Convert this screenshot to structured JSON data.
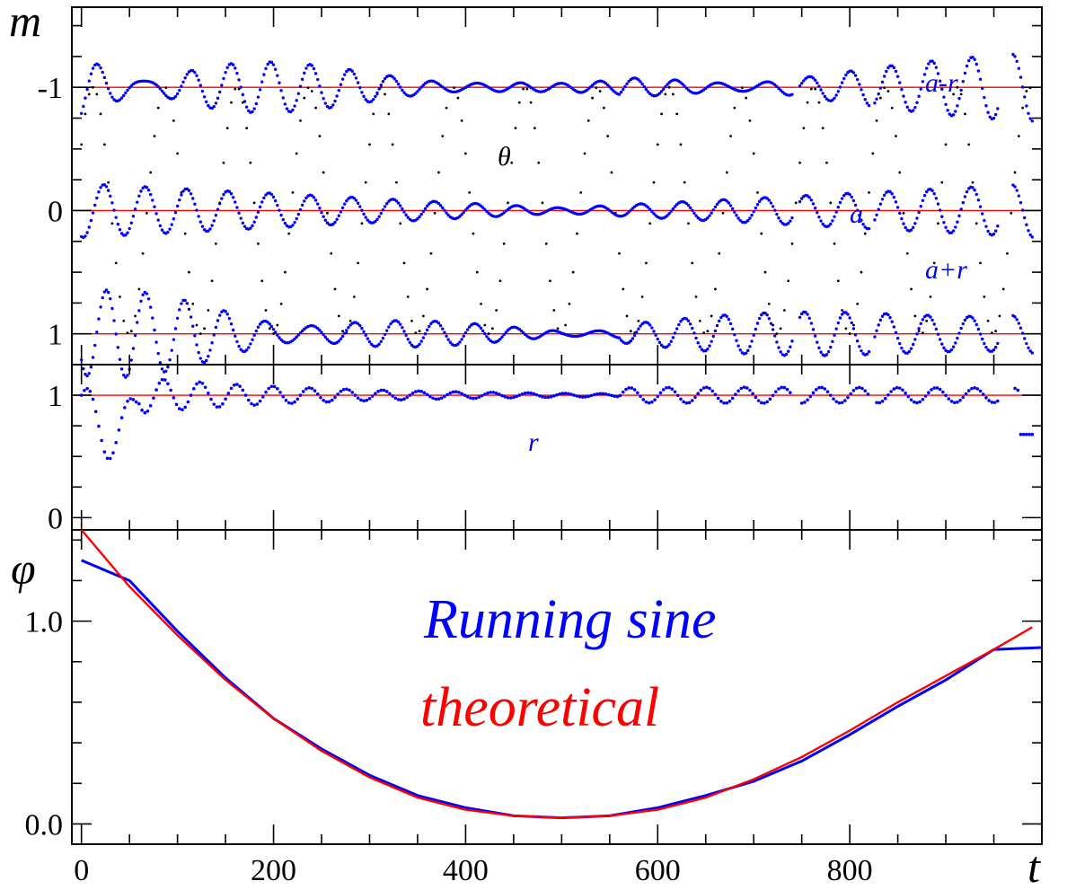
{
  "colors": {
    "data": "#0000ff",
    "theory": "#ff0000",
    "theta": "#000000",
    "axis": "#000000"
  },
  "chart_data": [
    {
      "panel": "top",
      "type": "scatter",
      "ylabel": "m",
      "ylim": [
        1.25,
        -1.65
      ],
      "y_inverted": true,
      "yticks": [
        -1,
        0,
        1
      ],
      "ytick_labels": [
        "-1",
        "0",
        "1"
      ],
      "xlim": [
        -10,
        1000
      ],
      "reference_lines": [
        -1,
        0,
        1
      ],
      "theta_range": [
        -1,
        1
      ],
      "theta_period": 75,
      "annotations": [
        "a-r",
        "θ",
        "a",
        "a+r"
      ],
      "series": [
        {
          "name": "a-r",
          "color": "#0000ff"
        },
        {
          "name": "a",
          "color": "#0000ff"
        },
        {
          "name": "a+r",
          "color": "#0000ff"
        },
        {
          "name": "θ",
          "color": "#000000"
        }
      ]
    },
    {
      "panel": "middle",
      "type": "scatter",
      "ylim": [
        -0.1,
        1.25
      ],
      "yticks": [
        0,
        1
      ],
      "ytick_labels": [
        "0",
        "1"
      ],
      "xlim": [
        -10,
        1000
      ],
      "reference_lines": [
        1
      ],
      "annotations": [
        "r"
      ],
      "series": [
        {
          "name": "r",
          "color": "#0000ff"
        }
      ]
    },
    {
      "panel": "bottom",
      "type": "line",
      "ylabel": "φ",
      "xlabel": "t",
      "ylim": [
        -0.1,
        1.45
      ],
      "yticks": [
        0.0,
        1.0
      ],
      "ytick_labels": [
        "0.0",
        "1.0"
      ],
      "xlim": [
        -10,
        1000
      ],
      "xticks": [
        0,
        200,
        400,
        600,
        800
      ],
      "xtick_labels": [
        "0",
        "200",
        "400",
        "600",
        "800"
      ],
      "legend": {
        "placement": "center",
        "entries": [
          "Running sine",
          "theoretical"
        ]
      },
      "series": [
        {
          "name": "Running sine",
          "color": "#0000ff",
          "x": [
            0,
            50,
            100,
            150,
            200,
            250,
            300,
            350,
            400,
            450,
            500,
            550,
            600,
            650,
            700,
            750,
            800,
            850,
            900,
            950,
            1000
          ],
          "y": [
            1.3,
            1.2,
            0.95,
            0.72,
            0.52,
            0.37,
            0.24,
            0.14,
            0.08,
            0.04,
            0.03,
            0.04,
            0.08,
            0.14,
            0.21,
            0.31,
            0.44,
            0.58,
            0.71,
            0.86,
            0.87
          ]
        },
        {
          "name": "theoretical",
          "color": "#ff0000",
          "x": [
            0,
            50,
            100,
            150,
            200,
            250,
            300,
            350,
            400,
            450,
            500,
            550,
            600,
            650,
            700,
            750,
            800,
            850,
            900,
            950,
            990
          ],
          "y": [
            1.45,
            1.17,
            0.93,
            0.71,
            0.52,
            0.36,
            0.23,
            0.13,
            0.07,
            0.04,
            0.03,
            0.04,
            0.07,
            0.13,
            0.22,
            0.33,
            0.46,
            0.6,
            0.73,
            0.86,
            0.97
          ]
        }
      ]
    }
  ]
}
